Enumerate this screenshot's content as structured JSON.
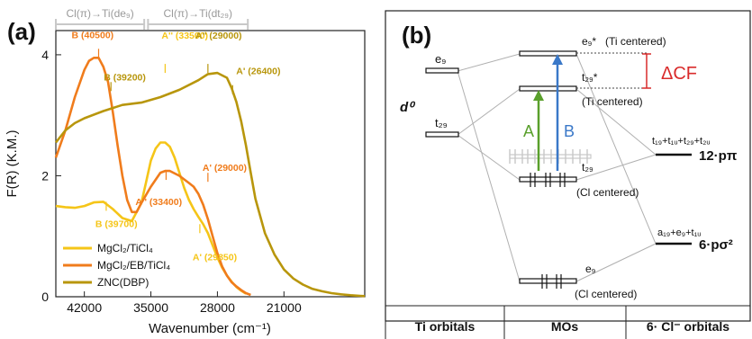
{
  "chart_data": [
    {
      "panel_label": "(a)",
      "type": "line",
      "xlabel": "Wavenumber (cm⁻¹)",
      "ylabel": "F(R) (K.M.)",
      "xlim": [
        45000,
        12500
      ],
      "ylim": [
        0,
        4.4
      ],
      "x_ticks": [
        42000,
        35000,
        28000,
        21000
      ],
      "y_ticks": [
        0,
        2,
        4
      ],
      "grid": false,
      "legend_position": "bottom-left",
      "top_brackets": [
        {
          "label": "Cl(π)→Ti(de₉)",
          "from": 45000,
          "to": 35700,
          "color": "#c8c8c8"
        },
        {
          "label": "Cl(π)→Ti(dt₂₉)",
          "from": 35300,
          "to": 24800,
          "color": "#c8c8c8"
        }
      ],
      "series": [
        {
          "name": "MgCl₂/TiCl₄",
          "color": "#f5c518",
          "x": [
            45000,
            44000,
            43000,
            42000,
            41000,
            40000,
            39000,
            38000,
            37000,
            36000,
            35500,
            35000,
            34500,
            34000,
            33500,
            33000,
            32500,
            32000,
            31500,
            31000,
            30500,
            30000,
            29500,
            29000,
            28500,
            28000,
            27500,
            27000,
            26500,
            26000,
            25500,
            25000
          ],
          "y": [
            1.5,
            1.48,
            1.47,
            1.5,
            1.56,
            1.57,
            1.45,
            1.3,
            1.25,
            1.55,
            1.9,
            2.25,
            2.45,
            2.55,
            2.55,
            2.48,
            2.3,
            2.05,
            1.8,
            1.6,
            1.45,
            1.32,
            1.2,
            1.05,
            0.85,
            0.65,
            0.48,
            0.35,
            0.25,
            0.16,
            0.1,
            0.05
          ]
        },
        {
          "name": "MgCl₂/EB/TiCl₄",
          "color": "#f07c1c",
          "x": [
            45000,
            44000,
            43000,
            42000,
            41500,
            41000,
            40500,
            40000,
            39500,
            39000,
            38500,
            38000,
            37500,
            37000,
            36500,
            36000,
            35000,
            34000,
            33500,
            33000,
            32000,
            31000,
            30500,
            30000,
            29500,
            29000,
            28500,
            28000,
            27500,
            27000,
            26500,
            26000,
            25500,
            25000,
            24500
          ],
          "y": [
            2.3,
            2.75,
            3.3,
            3.75,
            3.9,
            3.95,
            3.95,
            3.8,
            3.55,
            3.05,
            2.5,
            2.0,
            1.6,
            1.4,
            1.4,
            1.55,
            1.82,
            2.05,
            2.08,
            2.08,
            2.0,
            1.88,
            1.82,
            1.7,
            1.52,
            1.28,
            1.0,
            0.72,
            0.5,
            0.35,
            0.24,
            0.17,
            0.11,
            0.06,
            0.03
          ]
        },
        {
          "name": "ZNC(DBP)",
          "color": "#b8960c",
          "x": [
            45000,
            44000,
            43000,
            42000,
            40000,
            38000,
            36000,
            34000,
            32000,
            30000,
            29000,
            28000,
            27000,
            26500,
            26000,
            25500,
            25000,
            24500,
            24000,
            23000,
            22000,
            21000,
            20000,
            19000,
            18000,
            17000,
            16000,
            15000,
            14000,
            13000,
            12500
          ],
          "y": [
            2.55,
            2.75,
            2.87,
            2.95,
            3.07,
            3.17,
            3.21,
            3.3,
            3.42,
            3.58,
            3.68,
            3.7,
            3.62,
            3.45,
            3.22,
            2.9,
            2.5,
            2.05,
            1.62,
            1.05,
            0.7,
            0.45,
            0.3,
            0.2,
            0.13,
            0.09,
            0.06,
            0.04,
            0.025,
            0.015,
            0.01
          ]
        }
      ],
      "annotations": [
        {
          "text": "B (40500)",
          "x": 40500,
          "y": 3.95,
          "color": "#f07c1c"
        },
        {
          "text": "B (39200)",
          "x": 39200,
          "y": 3.4,
          "color": "#b8960c"
        },
        {
          "text": "A'' (33500)",
          "x": 33500,
          "y": 3.7,
          "color": "#f5c518"
        },
        {
          "text": "A'' (29000)",
          "x": 29000,
          "y": 3.7,
          "color": "#b8960c"
        },
        {
          "text": "A' (26400)",
          "x": 26400,
          "y": 3.35,
          "color": "#b8960c"
        },
        {
          "text": "B (39700)",
          "x": 39700,
          "y": 1.57,
          "color": "#f5c518"
        },
        {
          "text": "A' (29000)",
          "x": 29000,
          "y": 1.9,
          "color": "#f07c1c"
        },
        {
          "text": "A'' (33400)",
          "x": 33400,
          "y": 2.08,
          "color": "#f07c1c"
        },
        {
          "text": "A' (29850)",
          "x": 29850,
          "y": 1.2,
          "color": "#f5c518"
        }
      ]
    },
    {
      "panel_label": "(b)",
      "type": "table",
      "column_headers": [
        "Ti orbitals",
        "MOs",
        "6· Cl⁻ orbitals"
      ],
      "ti_orbitals": [
        "e₉",
        "t₂₉"
      ],
      "ti_configuration": "d⁰",
      "mo_levels": [
        {
          "label": "e₉*",
          "note": "(Ti centered)"
        },
        {
          "label": "t₂₉*",
          "note": "(Ti centered)"
        },
        {
          "label": "t₂₉",
          "note": "(Cl centered)"
        },
        {
          "label": "e₉",
          "note": "(Cl centered)"
        }
      ],
      "cl_orbitals": [
        {
          "label": "t₁₉+t₁ᵤ+t₂₉+t₂ᵤ",
          "value": "12·pπ"
        },
        {
          "label": "a₁₉+e₉+t₁ᵤ",
          "value": "6·pσ²"
        }
      ],
      "transitions": [
        {
          "label": "A",
          "color": "#5aa02c"
        },
        {
          "label": "B",
          "color": "#3a78c8"
        }
      ],
      "splitting": {
        "label": "ΔCF",
        "color": "#d92b2b"
      }
    }
  ]
}
